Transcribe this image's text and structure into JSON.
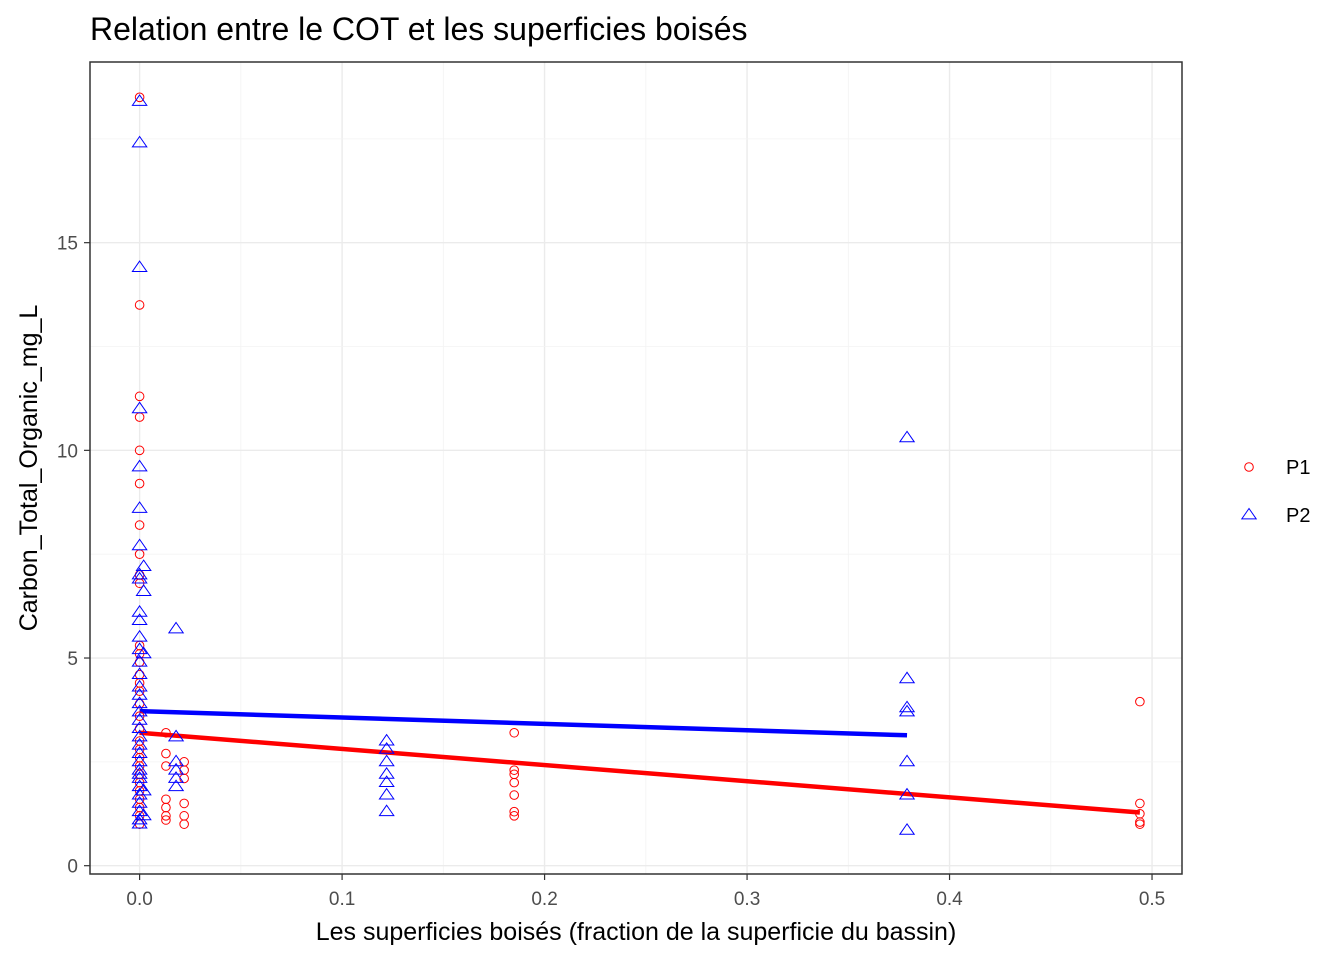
{
  "chart_data": {
    "type": "scatter",
    "title": "Relation entre le COT et les superficies boisés",
    "xlabel": "Les superficies boisés (fraction de la superficie du bassin)",
    "ylabel": "Carbon_Total_Organic_mg_L",
    "xlim": [
      -0.0245,
      0.5148
    ],
    "ylim": [
      -0.2,
      19.35
    ],
    "x_ticks": [
      0.0,
      0.1,
      0.2,
      0.3,
      0.4,
      0.5
    ],
    "x_tick_labels": [
      "0.0",
      "0.1",
      "0.2",
      "0.3",
      "0.4",
      "0.5"
    ],
    "y_ticks": [
      0,
      5,
      10,
      15
    ],
    "y_tick_labels": [
      "0",
      "5",
      "10",
      "15"
    ],
    "grid": true,
    "legend_position": "right",
    "series": [
      {
        "name": "P1",
        "color": "#ff0000",
        "marker": "circle",
        "points": [
          [
            0.0,
            18.5
          ],
          [
            0.0,
            13.5
          ],
          [
            0.0,
            11.3
          ],
          [
            0.0,
            10.8
          ],
          [
            0.0,
            10.0
          ],
          [
            0.0,
            9.2
          ],
          [
            0.0,
            8.2
          ],
          [
            0.0,
            7.5
          ],
          [
            0.0,
            7.0
          ],
          [
            0.0,
            6.8
          ],
          [
            0.0,
            5.3
          ],
          [
            0.0,
            5.1
          ],
          [
            0.0,
            4.9
          ],
          [
            0.0,
            4.6
          ],
          [
            0.0,
            4.4
          ],
          [
            0.0,
            4.2
          ],
          [
            0.0,
            3.9
          ],
          [
            0.0,
            3.6
          ],
          [
            0.0,
            3.3
          ],
          [
            0.0,
            3.0
          ],
          [
            0.0,
            2.8
          ],
          [
            0.0,
            2.6
          ],
          [
            0.0,
            2.4
          ],
          [
            0.0,
            2.2
          ],
          [
            0.0,
            2.0
          ],
          [
            0.0,
            1.8
          ],
          [
            0.0,
            1.6
          ],
          [
            0.0,
            1.4
          ],
          [
            0.0,
            1.2
          ],
          [
            0.0,
            1.0
          ],
          [
            0.013,
            3.2
          ],
          [
            0.013,
            2.7
          ],
          [
            0.013,
            2.4
          ],
          [
            0.013,
            1.6
          ],
          [
            0.013,
            1.4
          ],
          [
            0.013,
            1.2
          ],
          [
            0.013,
            1.1
          ],
          [
            0.022,
            2.5
          ],
          [
            0.022,
            2.3
          ],
          [
            0.022,
            2.1
          ],
          [
            0.022,
            1.5
          ],
          [
            0.022,
            1.2
          ],
          [
            0.022,
            1.0
          ],
          [
            0.185,
            3.2
          ],
          [
            0.185,
            2.3
          ],
          [
            0.185,
            2.2
          ],
          [
            0.185,
            2.0
          ],
          [
            0.185,
            1.7
          ],
          [
            0.185,
            1.3
          ],
          [
            0.185,
            1.2
          ],
          [
            0.494,
            3.95
          ],
          [
            0.494,
            1.5
          ],
          [
            0.494,
            1.25
          ],
          [
            0.494,
            1.05
          ],
          [
            0.494,
            1.0
          ]
        ],
        "fit": [
          [
            0.0,
            3.2
          ],
          [
            0.494,
            1.28
          ]
        ]
      },
      {
        "name": "P2",
        "color": "#0000ff",
        "marker": "triangle",
        "points": [
          [
            0.0,
            18.4
          ],
          [
            0.0,
            17.4
          ],
          [
            0.0,
            14.4
          ],
          [
            0.0,
            11.0
          ],
          [
            0.0,
            9.6
          ],
          [
            0.0,
            8.6
          ],
          [
            0.0,
            7.7
          ],
          [
            0.0,
            7.0
          ],
          [
            0.0,
            6.9
          ],
          [
            0.002,
            7.2
          ],
          [
            0.002,
            6.6
          ],
          [
            0.0,
            6.1
          ],
          [
            0.0,
            5.9
          ],
          [
            0.0,
            5.5
          ],
          [
            0.0,
            5.2
          ],
          [
            0.002,
            5.1
          ],
          [
            0.0,
            4.9
          ],
          [
            0.0,
            4.6
          ],
          [
            0.0,
            4.3
          ],
          [
            0.0,
            4.1
          ],
          [
            0.0,
            3.9
          ],
          [
            0.0,
            3.7
          ],
          [
            0.0,
            3.5
          ],
          [
            0.0,
            3.3
          ],
          [
            0.0,
            3.1
          ],
          [
            0.0,
            2.9
          ],
          [
            0.0,
            2.7
          ],
          [
            0.0,
            2.5
          ],
          [
            0.0,
            2.3
          ],
          [
            0.0,
            2.1
          ],
          [
            0.0,
            1.9
          ],
          [
            0.0,
            1.7
          ],
          [
            0.0,
            1.5
          ],
          [
            0.0,
            1.3
          ],
          [
            0.0,
            1.1
          ],
          [
            0.0,
            1.0
          ],
          [
            0.0,
            2.2
          ],
          [
            0.002,
            1.8
          ],
          [
            0.002,
            1.2
          ],
          [
            0.018,
            5.7
          ],
          [
            0.018,
            3.1
          ],
          [
            0.018,
            2.5
          ],
          [
            0.018,
            2.3
          ],
          [
            0.018,
            2.1
          ],
          [
            0.018,
            1.9
          ],
          [
            0.122,
            3.0
          ],
          [
            0.122,
            2.8
          ],
          [
            0.122,
            2.5
          ],
          [
            0.122,
            2.2
          ],
          [
            0.122,
            2.0
          ],
          [
            0.122,
            1.7
          ],
          [
            0.122,
            1.3
          ],
          [
            0.379,
            10.3
          ],
          [
            0.379,
            4.5
          ],
          [
            0.379,
            3.8
          ],
          [
            0.379,
            3.7
          ],
          [
            0.379,
            2.5
          ],
          [
            0.379,
            1.7
          ],
          [
            0.379,
            0.85
          ]
        ],
        "fit": [
          [
            0.0,
            3.72
          ],
          [
            0.379,
            3.14
          ]
        ]
      }
    ]
  }
}
